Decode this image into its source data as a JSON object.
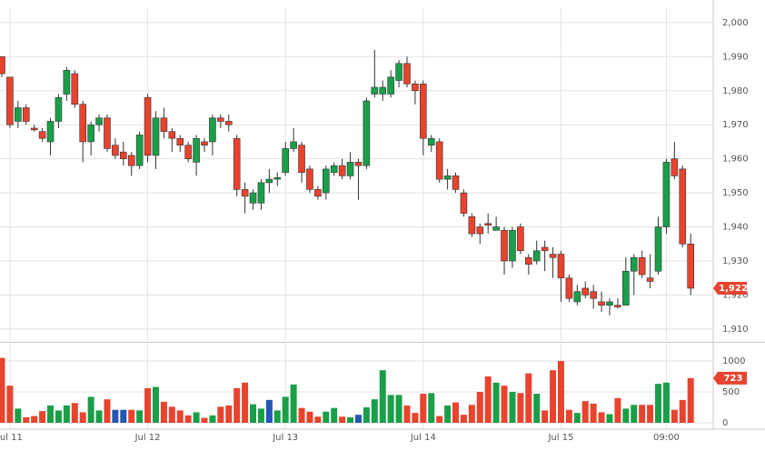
{
  "chart_data": {
    "type": "candlestick",
    "categories": [
      null,
      "Jul 11",
      null,
      null,
      null,
      null,
      null,
      null,
      null,
      null,
      null,
      null,
      null,
      null,
      null,
      null,
      null,
      null,
      "Jul 12",
      null,
      null,
      null,
      null,
      null,
      null,
      null,
      null,
      null,
      null,
      null,
      null,
      null,
      null,
      null,
      null,
      "Jul 13",
      null,
      null,
      null,
      null,
      null,
      null,
      null,
      null,
      null,
      null,
      null,
      null,
      null,
      null,
      null,
      null,
      "Jul 14",
      null,
      null,
      null,
      null,
      null,
      null,
      null,
      null,
      null,
      null,
      null,
      null,
      null,
      null,
      null,
      null,
      "Jul 15",
      null,
      null,
      null,
      null,
      null,
      null,
      null,
      null,
      null,
      null,
      null,
      null,
      "09:00",
      null,
      null,
      null
    ],
    "open": [
      1990,
      1984,
      1971,
      1975,
      1969,
      1968,
      1965,
      1971,
      1979,
      1985,
      1976,
      1965,
      1970,
      1972,
      1964,
      1962,
      1961,
      1958,
      1978,
      1961,
      1972,
      1968,
      1966,
      1964,
      1959,
      1965,
      1965,
      1972,
      1971,
      1966,
      1951,
      1947,
      1947,
      1953,
      1954,
      1956,
      1963,
      1964,
      1957,
      1951,
      1950,
      1956,
      1958,
      1955,
      1959,
      1958,
      1979,
      1979,
      1979,
      1983,
      1988,
      1982,
      1982,
      1964,
      1965,
      1954,
      1955,
      1950,
      1943,
      1940,
      1941,
      1939,
      1939,
      1930,
      1940,
      1931,
      1930,
      1934,
      1932,
      1932,
      1925,
      1918,
      1922,
      1921,
      1918,
      1917,
      1917,
      1917,
      1927,
      1931,
      1925,
      1927,
      1940,
      1960,
      1957,
      1935
    ],
    "high": [
      1990,
      1984,
      1977,
      1976,
      1970,
      1969,
      1972,
      1979,
      1987,
      1986,
      1977,
      1971,
      1973,
      1973,
      1966,
      1965,
      1962,
      1968,
      1979,
      1974,
      1975,
      1969,
      1967,
      1965,
      1967,
      1966,
      1973,
      1973,
      1973,
      1967,
      1953,
      1951,
      1954,
      1957,
      1956,
      1965,
      1969,
      1965,
      1958,
      1952,
      1958,
      1959,
      1960,
      1962,
      1960,
      1978,
      1992,
      1983,
      1986,
      1989,
      1990,
      1983,
      1983,
      1967,
      1966,
      1957,
      1956,
      1951,
      1944,
      1941,
      1944,
      1943,
      1940,
      1940,
      1941,
      1932,
      1936,
      1936,
      1934,
      1933,
      1926,
      1923,
      1924,
      1923,
      1921,
      1919,
      1919,
      1931,
      1932,
      1933,
      1932,
      1943,
      1960,
      1965,
      1958,
      1938
    ],
    "low": [
      1984,
      1969,
      1969,
      1970,
      1968,
      1965,
      1961,
      1969,
      1977,
      1975,
      1959,
      1961,
      1968,
      1962,
      1960,
      1958,
      1955,
      1957,
      1959,
      1957,
      1966,
      1962,
      1962,
      1959,
      1955,
      1962,
      1961,
      1969,
      1968,
      1949,
      1944,
      1945,
      1945,
      1950,
      1952,
      1955,
      1962,
      1953,
      1950,
      1948,
      1948,
      1955,
      1954,
      1954,
      1948,
      1957,
      1978,
      1977,
      1978,
      1981,
      1981,
      1976,
      1961,
      1962,
      1953,
      1951,
      1950,
      1943,
      1937,
      1935,
      1938,
      1939,
      1926,
      1928,
      1932,
      1926,
      1929,
      1927,
      1925,
      1918,
      1918,
      1917,
      1919,
      1916,
      1915,
      1914,
      1916,
      1917,
      1920,
      1925,
      1922,
      1926,
      1938,
      1954,
      1934,
      1920
    ],
    "close": [
      1985,
      1970,
      1975,
      1971,
      1968.5,
      1966,
      1971,
      1978,
      1986,
      1976,
      1965,
      1970,
      1972,
      1963,
      1961,
      1960,
      1958,
      1967,
      1961,
      1972,
      1968,
      1966,
      1964,
      1960,
      1966,
      1964,
      1972,
      1971,
      1970,
      1951,
      1949,
      1950,
      1953,
      1954,
      1954.5,
      1963,
      1965,
      1956,
      1951,
      1949,
      1957,
      1958,
      1955,
      1959,
      1958,
      1977,
      1981,
      1981,
      1984,
      1988,
      1982,
      1980,
      1966,
      1966,
      1954,
      1955,
      1951,
      1944,
      1938,
      1938,
      1940.5,
      1940,
      1930,
      1939,
      1933,
      1929,
      1933,
      1933,
      1931,
      1925,
      1919,
      1921,
      1920,
      1919,
      1917,
      1918,
      1916.5,
      1927,
      1931,
      1926,
      1924,
      1940,
      1959,
      1955,
      1935,
      1922
    ],
    "up_color": "#1a9f49",
    "down_color": "#e8432e",
    "ylim": [
      1906.5,
      2004.5
    ],
    "yticks": [
      {
        "value": 1910,
        "label": "1,910"
      },
      {
        "value": 1920,
        "label": "1,920"
      },
      {
        "value": 1930,
        "label": "1,930"
      },
      {
        "value": 1940,
        "label": "1,940"
      },
      {
        "value": 1950,
        "label": "1,950"
      },
      {
        "value": 1960,
        "label": "1,960"
      },
      {
        "value": 1970,
        "label": "1,970"
      },
      {
        "value": 1980,
        "label": "1,980"
      },
      {
        "value": 1990,
        "label": "1,990"
      },
      {
        "value": 2000,
        "label": "2,000"
      }
    ],
    "grid": true,
    "last_price": {
      "value": 1922,
      "label": "1,922"
    },
    "badge_color": "#e8432e",
    "volume": {
      "values": [
        1050,
        600,
        230,
        90,
        110,
        190,
        280,
        200,
        280,
        320,
        170,
        420,
        200,
        380,
        210,
        210,
        210,
        200,
        560,
        580,
        340,
        260,
        200,
        120,
        170,
        80,
        120,
        260,
        280,
        560,
        650,
        300,
        230,
        370,
        200,
        420,
        620,
        240,
        180,
        100,
        180,
        240,
        100,
        90,
        130,
        250,
        380,
        850,
        450,
        450,
        280,
        160,
        470,
        480,
        110,
        280,
        330,
        130,
        290,
        500,
        750,
        650,
        600,
        500,
        480,
        800,
        470,
        200,
        850,
        1000,
        210,
        160,
        350,
        310,
        170,
        140,
        400,
        230,
        290,
        290,
        290,
        630,
        650,
        210,
        370,
        723
      ],
      "colors": [
        "#e8432e",
        "#e8432e",
        "#1a9f49",
        "#e8432e",
        "#e8432e",
        "#e8432e",
        "#1a9f49",
        "#1a9f49",
        "#1a9f49",
        "#e8432e",
        "#e8432e",
        "#1a9f49",
        "#1a9f49",
        "#e8432e",
        "#2457b3",
        "#2457b3",
        "#e8432e",
        "#1a9f49",
        "#e8432e",
        "#1a9f49",
        "#e8432e",
        "#e8432e",
        "#e8432e",
        "#e8432e",
        "#1a9f49",
        "#e8432e",
        "#1a9f49",
        "#e8432e",
        "#e8432e",
        "#e8432e",
        "#e8432e",
        "#1a9f49",
        "#1a9f49",
        "#2457b3",
        "#1a9f49",
        "#1a9f49",
        "#1a9f49",
        "#e8432e",
        "#e8432e",
        "#e8432e",
        "#1a9f49",
        "#1a9f49",
        "#e8432e",
        "#1a9f49",
        "#2457b3",
        "#1a9f49",
        "#1a9f49",
        "#1a9f49",
        "#1a9f49",
        "#1a9f49",
        "#e8432e",
        "#e8432e",
        "#e8432e",
        "#1a9f49",
        "#e8432e",
        "#1a9f49",
        "#e8432e",
        "#e8432e",
        "#e8432e",
        "#e8432e",
        "#e8432e",
        "#1a9f49",
        "#e8432e",
        "#1a9f49",
        "#e8432e",
        "#e8432e",
        "#1a9f49",
        "#e8432e",
        "#e8432e",
        "#e8432e",
        "#e8432e",
        "#1a9f49",
        "#e8432e",
        "#e8432e",
        "#e8432e",
        "#1a9f49",
        "#e8432e",
        "#1a9f49",
        "#1a9f49",
        "#e8432e",
        "#e8432e",
        "#1a9f49",
        "#1a9f49",
        "#e8432e",
        "#e8432e",
        "#e8432e"
      ],
      "ylim": [
        0,
        1279
      ],
      "yticks": [
        0,
        500,
        1000
      ],
      "last_volume": 723
    }
  }
}
